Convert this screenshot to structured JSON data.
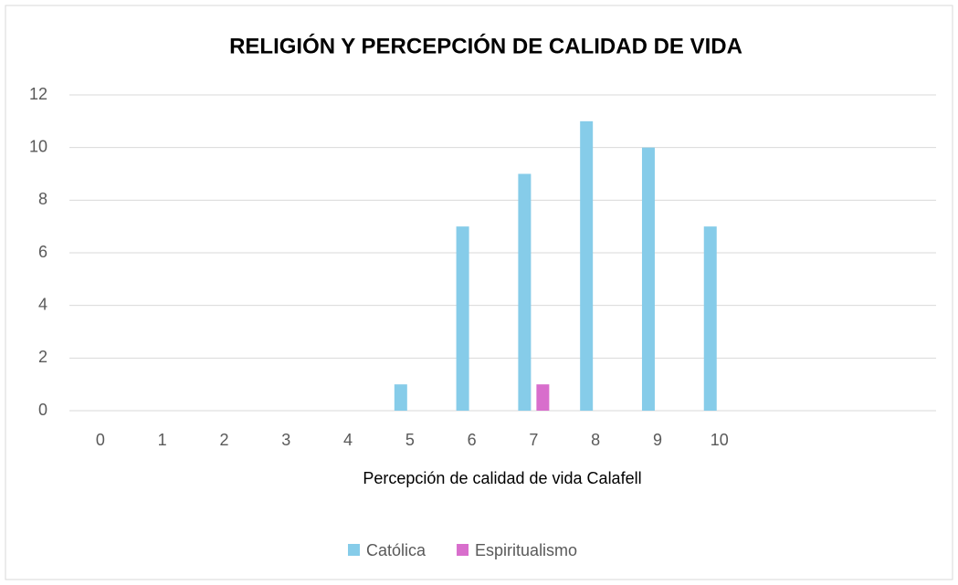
{
  "chart_data": {
    "type": "bar",
    "title": "RELIGIÓN Y PERCEPCIÓN DE CALIDAD DE VIDA",
    "x_label": "Percepción de calidad de vida Calafell",
    "categories": [
      "0",
      "1",
      "2",
      "3",
      "4",
      "5",
      "6",
      "7",
      "8",
      "9",
      "10",
      null,
      null,
      null
    ],
    "series": [
      {
        "name": "Católica",
        "color": "#86cce9",
        "values": [
          0,
          0,
          0,
          0,
          0,
          1,
          7,
          9,
          11,
          10,
          7,
          null,
          null,
          null
        ]
      },
      {
        "name": "Espiritualismo",
        "color": "#d86ecc",
        "values": [
          0,
          0,
          0,
          0,
          0,
          0,
          0,
          1,
          0,
          0,
          0,
          null,
          null,
          null
        ]
      }
    ],
    "ylim": [
      0,
      12
    ],
    "yticks": [
      0,
      2,
      4,
      6,
      8,
      10,
      12
    ],
    "grid": true,
    "legend": "bottom"
  }
}
